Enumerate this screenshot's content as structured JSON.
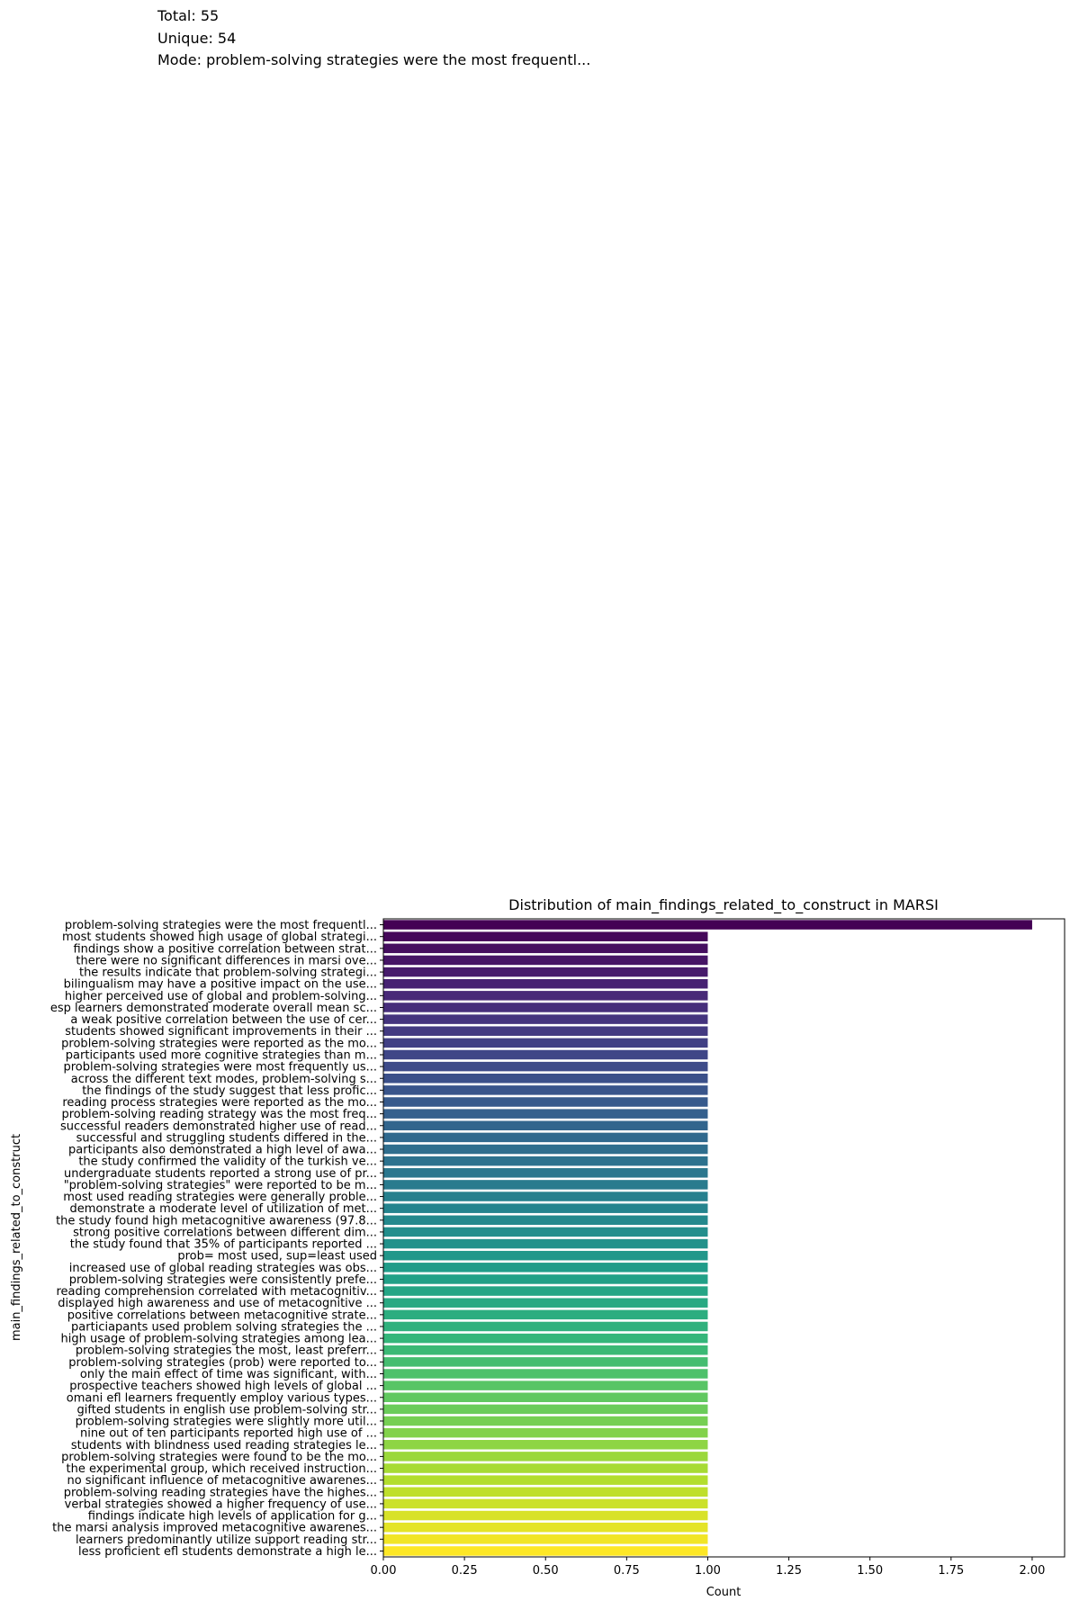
{
  "stats": {
    "total": "Total: 55",
    "unique": "Unique: 54",
    "mode": "Mode: problem-solving strategies were the most frequentl..."
  },
  "chart_data": {
    "type": "bar",
    "orientation": "horizontal",
    "title": "Distribution of main_findings_related_to_construct in MARSI",
    "xlabel": "Count",
    "ylabel": "main_findings_related_to_construct",
    "xlim": [
      0,
      2.1
    ],
    "xticks": [
      "0.00",
      "0.25",
      "0.50",
      "0.75",
      "1.00",
      "1.25",
      "1.50",
      "1.75",
      "2.00"
    ],
    "grid": false,
    "colormap": "viridis",
    "categories": [
      "problem-solving strategies were the most frequentl...",
      "most students showed high usage of global strategi...",
      "findings show a positive correlation between strat...",
      "there were no significant differences in marsi ove...",
      "the results indicate that problem-solving strategi...",
      "bilingualism may have a positive impact on the use...",
      "higher perceived use of global and problem-solving...",
      "esp learners demonstrated moderate overall mean sc...",
      "a weak positive correlation between the use of cer...",
      "students showed significant improvements in their ...",
      "problem-solving strategies were reported as the mo...",
      "participants used more cognitive strategies than m...",
      "problem-solving strategies were most frequently us...",
      "across the different text modes, problem-solving s...",
      "the findings of the study suggest that less profic...",
      "reading process strategies were reported as the mo...",
      "problem-solving reading strategy was the most freq...",
      "successful readers demonstrated higher use of read...",
      "successful and struggling students differed in the...",
      "participants also demonstrated a high level of awa...",
      "the study confirmed the validity of the turkish ve...",
      "undergraduate students reported a strong use of pr...",
      "\"problem-solving strategies\" were reported to be m...",
      "most used reading strategies were generally proble...",
      "demonstrate a moderate level of utilization of met...",
      "the study found high metacognitive awareness (97.8...",
      "strong positive correlations between different dim...",
      "the study found that 35% of participants reported ...",
      "prob= most used, sup=least used",
      "increased use of global reading strategies was obs...",
      "problem-solving strategies were consistently prefe...",
      "reading comprehension correlated with metacognitiv...",
      "displayed high awareness and use of metacognitive ...",
      "positive correlations between metacognitive strate...",
      "particiapants used problem solving strategies the ...",
      "high usage of problem-solving strategies among lea...",
      "problem-solving strategies the most, least preferr...",
      "problem-solving strategies (prob) were reported to...",
      "only the main effect of time was significant, with...",
      "prospective teachers showed high levels of global ...",
      "omani efl learners frequently employ various types...",
      "gifted students in english use problem-solving str...",
      "problem-solving strategies were slightly more util...",
      "nine out of ten participants reported high use of ...",
      "students with blindness used reading strategies le...",
      "problem-solving strategies were found to be the mo...",
      "the experimental group, which received instruction...",
      "no significant influence of metacognitive awarenes...",
      "problem-solving reading strategies have the highes...",
      "verbal strategies showed a higher frequency of use...",
      "findings indicate high levels of application for g...",
      "the marsi analysis improved metacognitive awarenes...",
      "learners predominantly utilize support reading str...",
      "less proficient efl students demonstrate a high le..."
    ],
    "values": [
      2,
      1,
      1,
      1,
      1,
      1,
      1,
      1,
      1,
      1,
      1,
      1,
      1,
      1,
      1,
      1,
      1,
      1,
      1,
      1,
      1,
      1,
      1,
      1,
      1,
      1,
      1,
      1,
      1,
      1,
      1,
      1,
      1,
      1,
      1,
      1,
      1,
      1,
      1,
      1,
      1,
      1,
      1,
      1,
      1,
      1,
      1,
      1,
      1,
      1,
      1,
      1,
      1,
      1
    ]
  }
}
